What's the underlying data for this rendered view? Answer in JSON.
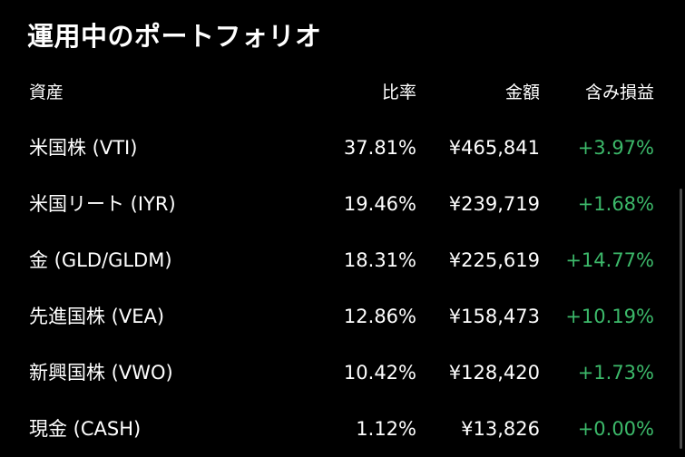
{
  "title": "運用中のポートフォリオ",
  "columns": {
    "asset": "資産",
    "ratio": "比率",
    "amount": "金額",
    "profit_loss": "含み損益"
  },
  "holdings": [
    {
      "asset": "米国株 (VTI)",
      "ratio": "37.81%",
      "amount": "¥465,841",
      "profit_loss": "+3.97%"
    },
    {
      "asset": "米国リート (IYR)",
      "ratio": "19.46%",
      "amount": "¥239,719",
      "profit_loss": "+1.68%"
    },
    {
      "asset": "金 (GLD/GLDM)",
      "ratio": "18.31%",
      "amount": "¥225,619",
      "profit_loss": "+14.77%"
    },
    {
      "asset": "先進国株 (VEA)",
      "ratio": "12.86%",
      "amount": "¥158,473",
      "profit_loss": "+10.19%"
    },
    {
      "asset": "新興国株 (VWO)",
      "ratio": "10.42%",
      "amount": "¥128,420",
      "profit_loss": "+1.73%"
    },
    {
      "asset": "現金 (CASH)",
      "ratio": "1.12%",
      "amount": "¥13,826",
      "profit_loss": "+0.00%"
    }
  ],
  "colors": {
    "background": "#000000",
    "text": "#ffffff",
    "gain": "#3cb96a"
  }
}
